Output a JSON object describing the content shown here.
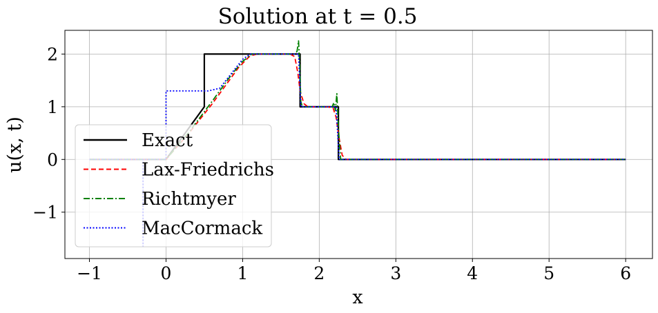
{
  "chart_data": {
    "type": "line",
    "title": "Solution at t = 0.5",
    "xlabel": "x",
    "ylabel": "u(x, t)",
    "xlim": [
      -1.32,
      6.35
    ],
    "ylim": [
      -1.88,
      2.45
    ],
    "xticks": [
      {
        "value": -1,
        "label": "−1"
      },
      {
        "value": 0,
        "label": "0"
      },
      {
        "value": 1,
        "label": "1"
      },
      {
        "value": 2,
        "label": "2"
      },
      {
        "value": 3,
        "label": "3"
      },
      {
        "value": 4,
        "label": "4"
      },
      {
        "value": 5,
        "label": "5"
      },
      {
        "value": 6,
        "label": "6"
      }
    ],
    "yticks": [
      {
        "value": -1,
        "label": "−1"
      },
      {
        "value": 0,
        "label": "0"
      },
      {
        "value": 1,
        "label": "1"
      },
      {
        "value": 2,
        "label": "2"
      }
    ],
    "grid": true,
    "legend_position": "lower-left",
    "series": [
      {
        "name": "Exact",
        "color": "#000000",
        "style": "solid",
        "points": [
          [
            -1,
            0
          ],
          [
            0,
            0
          ],
          [
            0.5,
            1
          ],
          [
            0.5,
            2
          ],
          [
            1.75,
            2
          ],
          [
            1.75,
            1
          ],
          [
            2.25,
            1
          ],
          [
            2.25,
            0
          ],
          [
            6,
            0
          ]
        ]
      },
      {
        "name": "Lax-Friedrichs",
        "color": "#ff0000",
        "style": "dashed",
        "points": [
          [
            -1,
            0
          ],
          [
            0,
            0
          ],
          [
            0.3,
            0.5
          ],
          [
            0.6,
            1.05
          ],
          [
            0.8,
            1.45
          ],
          [
            0.95,
            1.75
          ],
          [
            1.1,
            1.97
          ],
          [
            1.2,
            2
          ],
          [
            1.62,
            2
          ],
          [
            1.68,
            1.95
          ],
          [
            1.72,
            1.65
          ],
          [
            1.75,
            1.3
          ],
          [
            1.8,
            1.06
          ],
          [
            1.85,
            1
          ],
          [
            2.1,
            1
          ],
          [
            2.18,
            0.98
          ],
          [
            2.22,
            0.8
          ],
          [
            2.26,
            0.4
          ],
          [
            2.3,
            0.08
          ],
          [
            2.35,
            0
          ],
          [
            6,
            0
          ]
        ]
      },
      {
        "name": "Richtmyer",
        "color": "#008000",
        "style": "dashdot",
        "points": [
          [
            -1,
            0
          ],
          [
            0,
            0
          ],
          [
            0.3,
            0.52
          ],
          [
            0.6,
            1.1
          ],
          [
            0.85,
            1.6
          ],
          [
            1.0,
            1.86
          ],
          [
            1.12,
            2
          ],
          [
            1.68,
            2
          ],
          [
            1.71,
            2.05
          ],
          [
            1.73,
            2.25
          ],
          [
            1.745,
            1.8
          ],
          [
            1.76,
            1.1
          ],
          [
            1.78,
            1
          ],
          [
            2.17,
            1
          ],
          [
            2.19,
            1.08
          ],
          [
            2.21,
            0.93
          ],
          [
            2.23,
            1.25
          ],
          [
            2.25,
            0.6
          ],
          [
            2.28,
            0
          ],
          [
            6,
            0
          ]
        ]
      },
      {
        "name": "MacCormack",
        "color": "#0000ff",
        "style": "dotted",
        "points": [
          [
            -1,
            0
          ],
          [
            -0.3,
            0
          ],
          [
            -0.3,
            -1.65
          ],
          [
            -0.3,
            0
          ],
          [
            0,
            0
          ],
          [
            0,
            1.3
          ],
          [
            0.55,
            1.3
          ],
          [
            0.7,
            1.35
          ],
          [
            1.0,
            1.9
          ],
          [
            1.1,
            2
          ],
          [
            1.73,
            2
          ],
          [
            1.76,
            1
          ],
          [
            2.22,
            1
          ],
          [
            2.26,
            0
          ],
          [
            6,
            0
          ]
        ]
      }
    ]
  }
}
